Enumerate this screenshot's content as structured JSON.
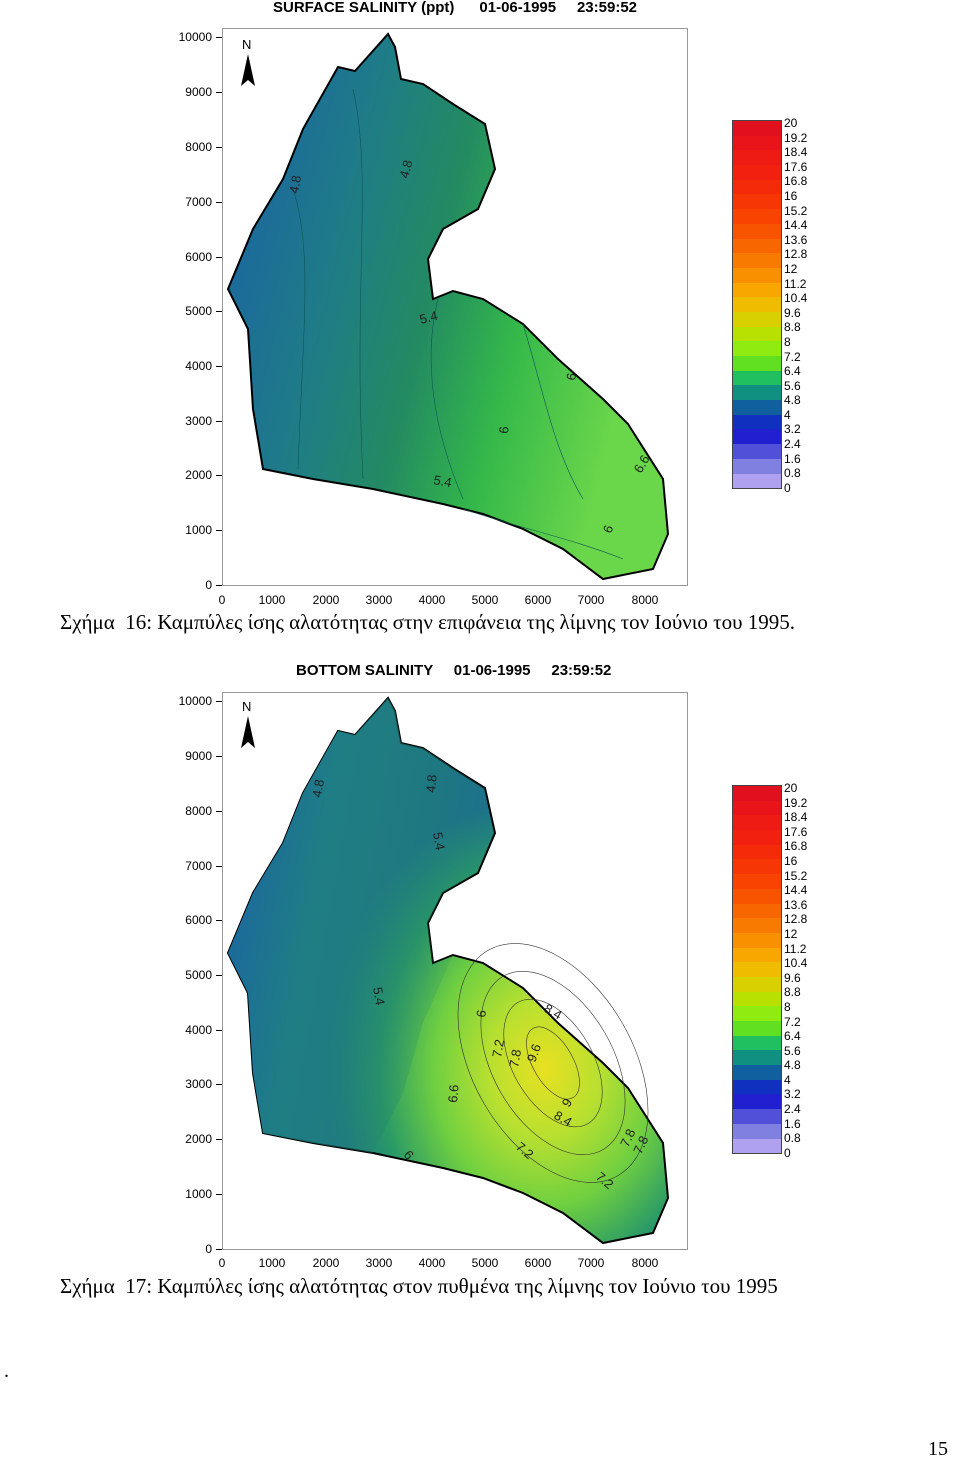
{
  "figures": [
    {
      "title": "SURFACE SALINITY (ppt)      01-06-1995     23:59:52",
      "caption": "Σχήμα  16: Καμπύλες ίσης αλατότητας στην επιφάνεια της λίμνης τον Ιούνιο του 1995.",
      "north_label": "N",
      "contour_labels": [
        "4.8",
        "4.8",
        "5.4",
        "5.4",
        "6",
        "6",
        "6.6",
        "6"
      ]
    },
    {
      "title": "BOTTOM SALINITY     01-06-1995     23:59:52",
      "caption": "Σχήμα  17: Καμπύλες ίσης αλατότητας στον πυθμένα της λίμνης τον Ιούνιο του 1995",
      "north_label": "N",
      "contour_labels": [
        "4.8",
        "4.8",
        "5.4",
        "5.4",
        "6",
        "7.2",
        "7.8",
        "9.6",
        "8.4",
        "8.4",
        "9",
        "6.6",
        "7.2",
        "7.8",
        "7.8",
        "6",
        "7.2"
      ]
    }
  ],
  "y_ticks": [
    "10000",
    "9000",
    "8000",
    "7000",
    "6000",
    "5000",
    "4000",
    "3000",
    "2000",
    "1000",
    "0"
  ],
  "x_ticks": [
    "0",
    "1000",
    "2000",
    "3000",
    "4000",
    "5000",
    "6000",
    "7000",
    "8000"
  ],
  "legend_labels": [
    "20",
    "19.2",
    "18.4",
    "17.6",
    "16.8",
    "16",
    "15.2",
    "14.4",
    "13.6",
    "12.8",
    "12",
    "11.2",
    "10.4",
    "9.6",
    "8.8",
    "8",
    "7.2",
    "6.4",
    "5.6",
    "4.8",
    "4",
    "3.2",
    "2.4",
    "1.6",
    "0.8",
    "0"
  ],
  "legend_colors": [
    "#e0101e",
    "#e8141a",
    "#ee1a14",
    "#f2200e",
    "#f42a08",
    "#f63604",
    "#f84400",
    "#f85400",
    "#f86600",
    "#f87a00",
    "#f89000",
    "#f8a600",
    "#f0bc00",
    "#d8d000",
    "#b8e000",
    "#90ec10",
    "#60e020",
    "#20c060",
    "#109080",
    "#1060a0",
    "#1030c0",
    "#2020d0",
    "#5050d8",
    "#8080e0",
    "#b0a0f0",
    "#c8b8f8"
  ],
  "page_footer": {
    "dot": ".",
    "page_number": "15"
  }
}
